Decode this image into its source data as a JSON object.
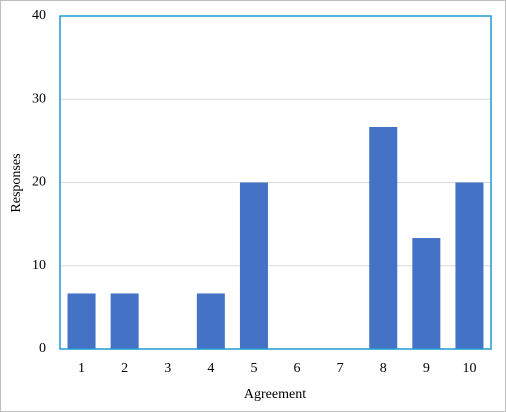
{
  "chart_data": {
    "type": "bar",
    "categories": [
      "1",
      "2",
      "3",
      "4",
      "5",
      "6",
      "7",
      "8",
      "9",
      "10"
    ],
    "values": [
      6.67,
      6.67,
      0,
      6.67,
      20,
      0,
      0,
      26.67,
      13.33,
      20
    ],
    "color": "#4472c4",
    "ylim": [
      0,
      40
    ],
    "yticks": [
      0,
      10,
      20,
      30,
      40
    ],
    "grid": true,
    "x_label": "Agreement",
    "y_label": "Responses"
  }
}
